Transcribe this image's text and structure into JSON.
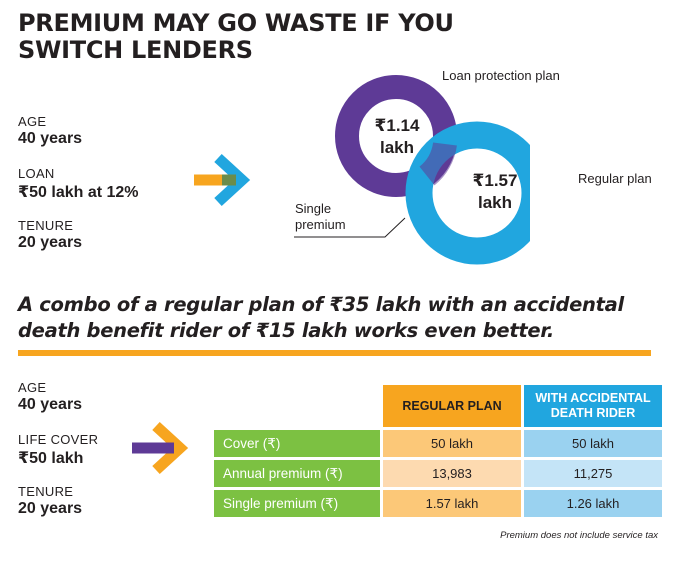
{
  "title": "PREMIUM MAY GO WASTE IF YOU SWITCH LENDERS",
  "top_left": {
    "age_label": "AGE",
    "age_value": "40 years",
    "loan_label": "LOAN",
    "loan_value": "₹50 lakh at 12%",
    "tenure_label": "TENURE",
    "tenure_value": "20 years"
  },
  "circles": {
    "loan_protection_label": "Loan protection plan",
    "loan_protection_amount_line1": "₹1.14",
    "loan_protection_amount_line2": "lakh",
    "regular_label": "Regular plan",
    "regular_amount_line1": "₹1.57",
    "regular_amount_line2": "lakh",
    "single_premium_line1": "Single",
    "single_premium_line2": "premium",
    "colors": {
      "loan_protection": "#5e3a96",
      "regular": "#21a6df"
    }
  },
  "combo_text": "A combo of a regular plan of ₹35 lakh with an accidental death benefit rider of ₹15 lakh works even better.",
  "bottom_left": {
    "age_label": "AGE",
    "age_value": "40 years",
    "cover_label": "LIFE COVER",
    "cover_value": "₹50 lakh",
    "tenure_label": "TENURE",
    "tenure_value": "20 years"
  },
  "table": {
    "headers": [
      "REGULAR PLAN",
      "WITH ACCIDENTAL DEATH RIDER"
    ],
    "rows": [
      {
        "label": "Cover (₹)",
        "regular": "50 lakh",
        "accidental": "50 lakh"
      },
      {
        "label": "Annual premium (₹)",
        "regular": "13,983",
        "accidental": "11,275"
      },
      {
        "label": "Single premium (₹)",
        "regular": "1.57 lakh",
        "accidental": "1.26 lakh"
      }
    ]
  },
  "note": "Premium does not include service tax"
}
